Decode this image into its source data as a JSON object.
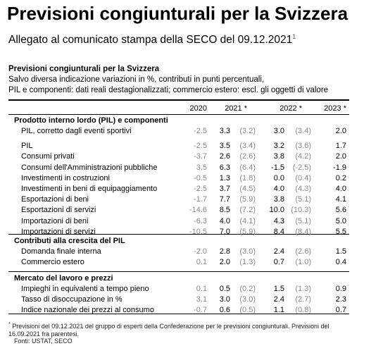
{
  "title": "Previsioni congiunturali per la Svizzera",
  "subtitle": "Allegato al comunicato stampa della SECO del 09.12.2021",
  "subtitle_sup": "1",
  "table": {
    "title": "Previsioni congiunturali per la Svizzera",
    "note_line1": "Salvo diversa indicazione variazioni in %, contributi in punti percentuali,",
    "note_line2": "PIL e componenti: dati reali destagionalizzati; commercio estero: escl. gli oggetti di valore",
    "headers": [
      "2020",
      "2021 *",
      "2022 *",
      "2023 *"
    ],
    "sections": [
      {
        "title": "Prodotto interno lordo (PIL) e componenti",
        "rows": [
          {
            "label": "PIL, corretto dagli eventi sportivi",
            "v2020": "-2.5",
            "v2021": "3.3",
            "p2021": "(3.2)",
            "v2022": "3.0",
            "p2022": "(3.4)",
            "v2023": "2.0"
          },
          {
            "label": "PIL",
            "v2020": "-2.5",
            "v2021": "3.5",
            "p2021": "(3.4)",
            "v2022": "3.2",
            "p2022": "(3.6)",
            "v2023": "1.7"
          },
          {
            "label": "Consumi privati",
            "v2020": "-3.7",
            "v2021": "2.6",
            "p2021": "(2.6)",
            "v2022": "3.8",
            "p2022": "(4.2)",
            "v2023": "2.0"
          },
          {
            "label": "Consumi dell'Amministrazioni pubbliche",
            "v2020": "3.5",
            "v2021": "6.3",
            "p2021": "(6.4)",
            "v2022": "-1.5",
            "p2022": "(-2.5)",
            "v2023": "-1.9"
          },
          {
            "label": "Investimenti in costruzioni",
            "v2020": "-0.5",
            "v2021": "1.3",
            "p2021": "(1.8)",
            "v2022": "0.0",
            "p2022": "(0.4)",
            "v2023": "0.2"
          },
          {
            "label": "Investimenti in beni di equipaggiamento",
            "v2020": "-2.5",
            "v2021": "3.7",
            "p2021": "(4.5)",
            "v2022": "4.0",
            "p2022": "(4.3)",
            "v2023": "4.0"
          },
          {
            "label": "Esportazioni di beni",
            "v2020": "-1.7",
            "v2021": "7.7",
            "p2021": "(5.9)",
            "v2022": "3.8",
            "p2022": "(5.1)",
            "v2023": "4.1"
          },
          {
            "label": "Esportazioni di servizi",
            "v2020": "-14.6",
            "v2021": "8.5",
            "p2021": "(7.2)",
            "v2022": "10.0",
            "p2022": "(10.3)",
            "v2023": "5.6"
          },
          {
            "label": "Importazioni di beni",
            "v2020": "-6.3",
            "v2021": "4.0",
            "p2021": "(4.1)",
            "v2022": "4.3",
            "p2022": "(5.1)",
            "v2023": "5.0"
          },
          {
            "label": "Importazioni di servizi",
            "v2020": "-10.5",
            "v2021": "7.0",
            "p2021": "(5.9)",
            "v2022": "8.4",
            "p2022": "(8.4)",
            "v2023": "5.5"
          }
        ]
      },
      {
        "title": "Contributi alla crescita del PIL",
        "rows": [
          {
            "label": "Domanda finale interna",
            "v2020": "-2.0",
            "v2021": "2.8",
            "p2021": "(3.0)",
            "v2022": "2.4",
            "p2022": "(2.6)",
            "v2023": "1.5"
          },
          {
            "label": "Commercio estero",
            "v2020": "0.1",
            "v2021": "2.0",
            "p2021": "(1.3)",
            "v2022": "0.7",
            "p2022": "(1.0)",
            "v2023": "0.4"
          }
        ]
      },
      {
        "title": "Mercato del lavoro e prezzi",
        "rows": [
          {
            "label": "Impieghi in equivalenti a tempo pieno",
            "v2020": "0.1",
            "v2021": "0.5",
            "p2021": "(0.2)",
            "v2022": "1.5",
            "p2022": "(1.3)",
            "v2023": "0.9"
          },
          {
            "label": "Tasso di disoccupazione in %",
            "v2020": "3.1",
            "v2021": "3.0",
            "p2021": "(3.0)",
            "v2022": "2.4",
            "p2022": "(2.7)",
            "v2023": "2.3"
          },
          {
            "label": "Indice nazionale dei prezzi al consumo",
            "v2020": "-0.7",
            "v2021": "0.6",
            "p2021": "(0.5)",
            "v2022": "1.1",
            "p2022": "(0.8)",
            "v2023": "0.7"
          }
        ]
      }
    ]
  },
  "footnote_mark": "*",
  "footnote": "Previsioni del 09.12.2021 del gruppo di esperti della Confederazione per le previsioni congiunturali. Previsioni del 16.09.2021 fra parentesi.",
  "source": "Fonti: USTAT, SECO"
}
